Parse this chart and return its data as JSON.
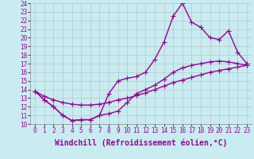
{
  "xlabel": "Windchill (Refroidissement éolien,°C)",
  "bg_color": "#c8ecf0",
  "line_color": "#990099",
  "grid_color": "#b0b0b0",
  "xlim": [
    -0.5,
    23.5
  ],
  "ylim": [
    10,
    24
  ],
  "xticks": [
    0,
    1,
    2,
    3,
    4,
    5,
    6,
    7,
    8,
    9,
    10,
    11,
    12,
    13,
    14,
    15,
    16,
    17,
    18,
    19,
    20,
    21,
    22,
    23
  ],
  "yticks": [
    10,
    11,
    12,
    13,
    14,
    15,
    16,
    17,
    18,
    19,
    20,
    21,
    22,
    23,
    24
  ],
  "series1_x": [
    0,
    1,
    2,
    3,
    4,
    5,
    6,
    7,
    8,
    9,
    10,
    11,
    12,
    13,
    14,
    15,
    16,
    17,
    18,
    19,
    20,
    21,
    22,
    23
  ],
  "series1_y": [
    13.8,
    12.8,
    12.0,
    11.0,
    10.4,
    10.5,
    10.5,
    11.0,
    13.5,
    15.0,
    15.3,
    15.5,
    16.0,
    17.5,
    19.5,
    22.5,
    24.0,
    21.8,
    21.2,
    20.0,
    19.8,
    20.8,
    18.3,
    17.0
  ],
  "series2_x": [
    0,
    1,
    2,
    3,
    4,
    5,
    6,
    7,
    8,
    9,
    10,
    11,
    12,
    13,
    14,
    15,
    16,
    17,
    18,
    19,
    20,
    21,
    22,
    23
  ],
  "series2_y": [
    13.8,
    12.8,
    12.0,
    11.0,
    10.4,
    10.5,
    10.5,
    11.0,
    11.2,
    11.5,
    12.5,
    13.5,
    14.0,
    14.5,
    15.2,
    16.0,
    16.5,
    16.8,
    17.0,
    17.2,
    17.3,
    17.2,
    17.0,
    16.8
  ],
  "series3_x": [
    0,
    1,
    2,
    3,
    4,
    5,
    6,
    7,
    8,
    9,
    10,
    11,
    12,
    13,
    14,
    15,
    16,
    17,
    18,
    19,
    20,
    21,
    22,
    23
  ],
  "series3_y": [
    13.8,
    13.2,
    12.8,
    12.5,
    12.3,
    12.2,
    12.2,
    12.3,
    12.5,
    12.8,
    13.0,
    13.3,
    13.6,
    14.0,
    14.4,
    14.8,
    15.1,
    15.4,
    15.7,
    16.0,
    16.2,
    16.4,
    16.6,
    16.8
  ],
  "marker": "+",
  "markersize": 4,
  "linewidth": 1.0,
  "xlabel_fontsize": 7,
  "tick_fontsize": 5.5
}
